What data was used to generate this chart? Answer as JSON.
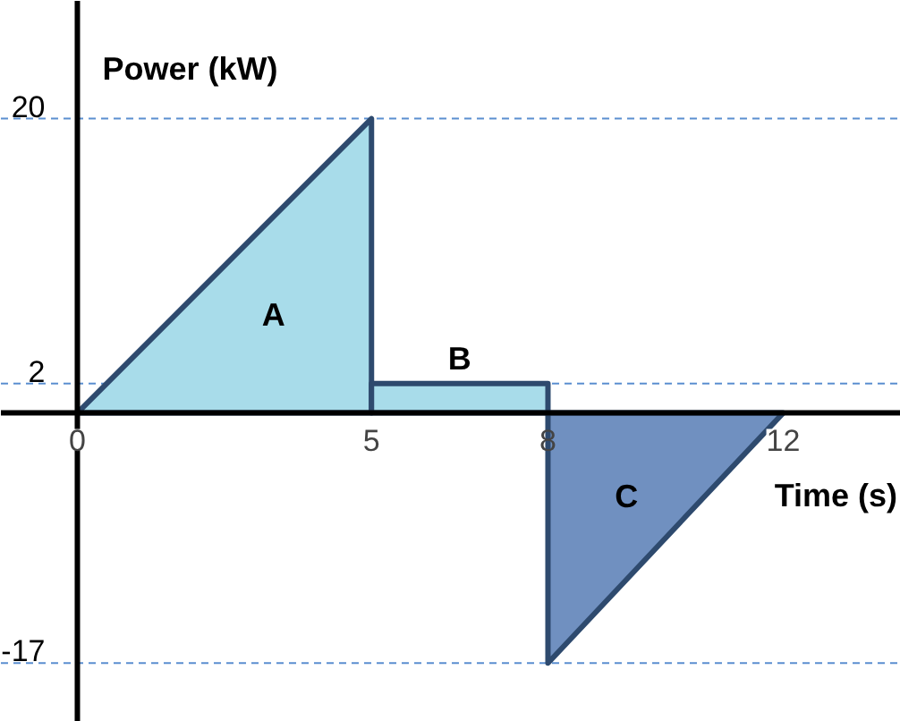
{
  "chart_data": {
    "type": "area",
    "xlabel": "Time (s)",
    "ylabel": "Power (kW)",
    "series": [
      {
        "x": [
          0,
          5,
          5
        ],
        "values": [
          0,
          20,
          0
        ],
        "color": "#a8dcea"
      },
      {
        "x": [
          5,
          5,
          8,
          8
        ],
        "values": [
          0,
          2,
          2,
          0
        ],
        "color": "#a8dcea"
      },
      {
        "x": [
          8,
          8,
          12
        ],
        "values": [
          0,
          -17,
          0
        ],
        "color": "#7090c0"
      }
    ],
    "annotations": [
      "A",
      "B",
      "C"
    ],
    "ref_lines": [
      {
        "axis": "y",
        "value": 20,
        "color": "#5b8fd0",
        "line_style": "dashed"
      },
      {
        "axis": "y",
        "value": 2,
        "color": "#5b8fd0",
        "line_style": "dashed"
      },
      {
        "axis": "y",
        "value": -17,
        "color": "#5b8fd0",
        "line_style": "dashed"
      }
    ],
    "xlim": [
      -1.3,
      14
    ],
    "ylim": [
      -21,
      28
    ],
    "xticks": [
      0,
      5,
      8,
      12
    ],
    "yticks": [
      -17,
      2,
      20
    ],
    "grid": false
  }
}
